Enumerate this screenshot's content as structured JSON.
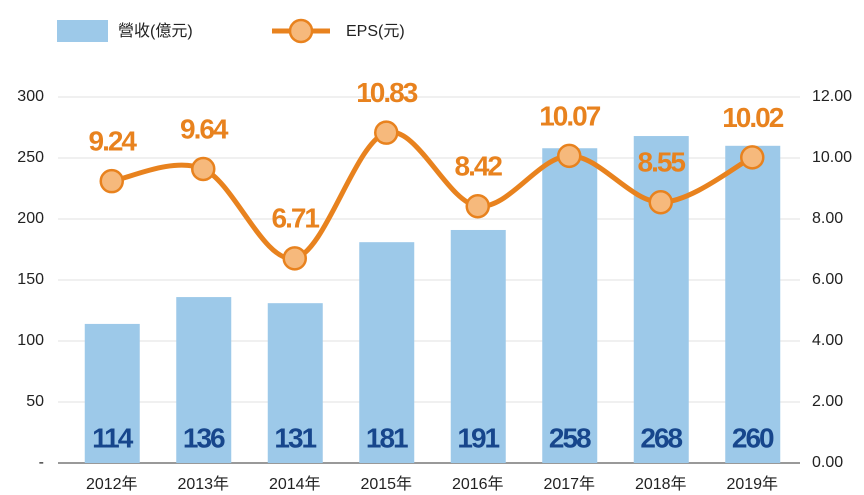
{
  "chart_data": {
    "type": "bar-line",
    "categories": [
      "2012年",
      "2013年",
      "2014年",
      "2015年",
      "2016年",
      "2017年",
      "2018年",
      "2019年"
    ],
    "series": [
      {
        "name": "營收(億元)",
        "type": "bar",
        "color": "#9dc9e9",
        "label_color": "#17468c",
        "values": [
          114,
          136,
          131,
          181,
          191,
          258,
          268,
          260
        ]
      },
      {
        "name": "EPS(元)",
        "type": "line",
        "axis": "y2",
        "color": "#e8821e",
        "marker_color": "#f6b97c",
        "values": [
          9.24,
          9.64,
          6.71,
          10.83,
          8.42,
          10.07,
          8.55,
          10.02
        ]
      }
    ],
    "ylim": [
      0,
      300
    ],
    "yticks": [
      {
        "value": 0,
        "label": "-"
      },
      50,
      100,
      150,
      200,
      250,
      300
    ],
    "y2lim": [
      0,
      12
    ],
    "y2ticks": [
      {
        "value": 0,
        "label": "0.00"
      },
      {
        "value": 2,
        "label": "2.00"
      },
      {
        "value": 4,
        "label": "4.00"
      },
      {
        "value": 6,
        "label": "6.00"
      },
      {
        "value": 8,
        "label": "8.00"
      },
      {
        "value": 10,
        "label": "10.00"
      },
      {
        "value": 12,
        "label": "12.00"
      }
    ],
    "grid": true,
    "legend": "top-left"
  }
}
